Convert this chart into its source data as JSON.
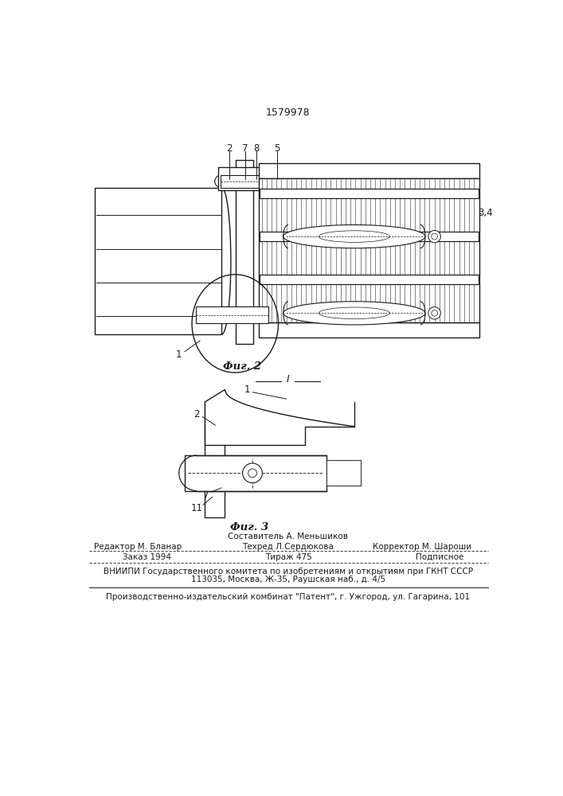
{
  "patent_number": "1579978",
  "fig2_caption": "Фиг. 2",
  "fig3_caption": "Фиг. 3",
  "footer_col1": "Редактор М. Бланар",
  "footer_col2_top": "Составитель А. Меньшиков",
  "footer_col2_bot": "Техред Л.Сердюкова",
  "footer_col3": "Корректор М. Шароши",
  "footer_zak": "Заказ 1994",
  "footer_tir": "Тираж 475",
  "footer_pod": "Подписное",
  "footer_vniip1": "ВНИИПИ Государственного комитета по изобретениям и открытиям при ГКНТ СССР",
  "footer_vniip2": "113035, Москва, Ж-35, Раушская наб., д. 4/5",
  "footer_pub": "Производственно-издательский комбинат \"Патент\", г. Ужгород, ул. Гагарина, 101",
  "bg_color": "#ffffff",
  "lc": "#1a1a1a"
}
